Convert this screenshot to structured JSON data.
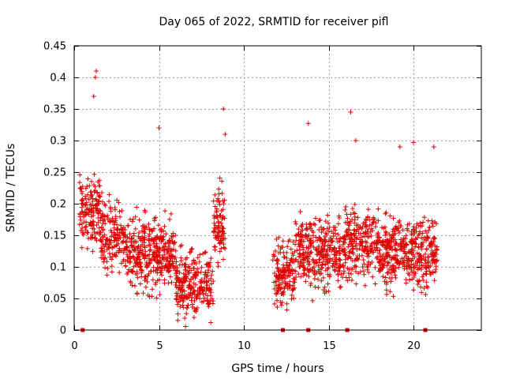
{
  "chart_data": {
    "type": "scatter",
    "title": "Day 065 of 2022, SRMTID for receiver pifl",
    "xlabel": "GPS time / hours",
    "ylabel": "SRMTID / TECUs",
    "xlim": [
      0,
      24
    ],
    "ylim": [
      0,
      0.45
    ],
    "xticks": [
      0,
      5,
      10,
      15,
      20
    ],
    "yticks": [
      0,
      0.05,
      0.1,
      0.15,
      0.2,
      0.25,
      0.3,
      0.35,
      0.4,
      0.45
    ],
    "grid": true,
    "legend": "none",
    "marker": "plus",
    "color": "#e00000",
    "segments": [
      {
        "x_start": 0.3,
        "x_end": 8.9,
        "peak_points": [
          [
            1.3,
            0.41
          ],
          [
            1.25,
            0.4
          ],
          [
            1.15,
            0.37
          ],
          [
            8.8,
            0.35
          ],
          [
            5.0,
            0.32
          ],
          [
            8.9,
            0.31
          ]
        ]
      },
      {
        "x_start": 11.7,
        "x_end": 21.4,
        "peak_points": [
          [
            16.3,
            0.345
          ],
          [
            13.8,
            0.327
          ],
          [
            16.6,
            0.3
          ],
          [
            20.0,
            0.297
          ],
          [
            21.2,
            0.29
          ],
          [
            19.2,
            0.29
          ]
        ]
      }
    ],
    "zero_markers": [
      0.5,
      12.3,
      13.8,
      16.1,
      20.7
    ]
  }
}
